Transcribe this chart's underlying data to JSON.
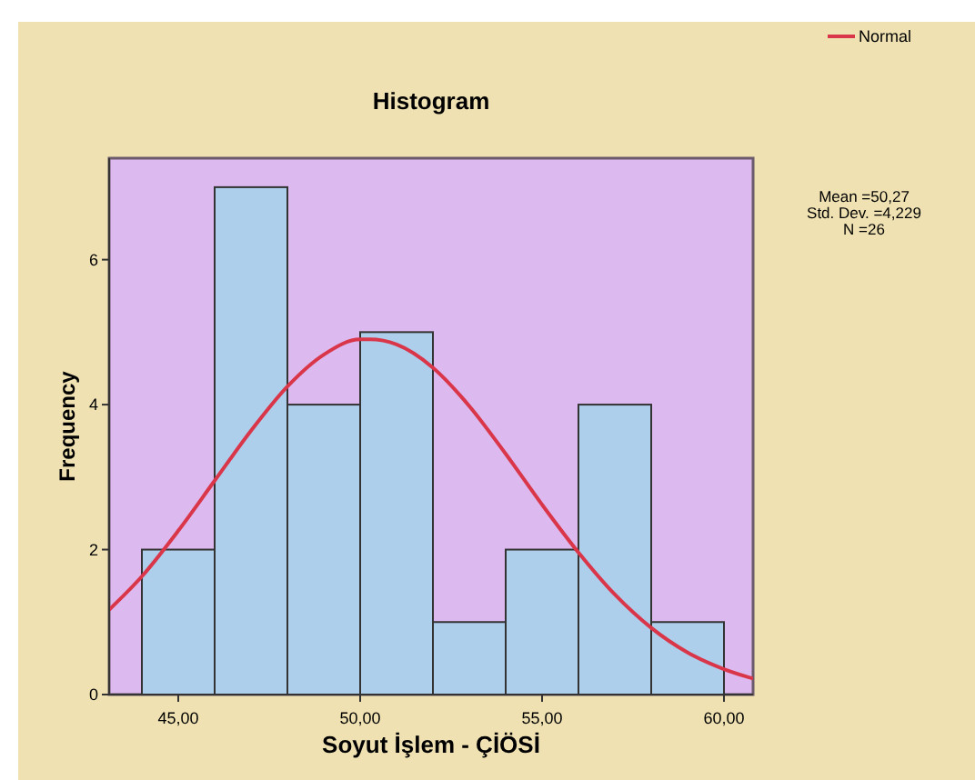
{
  "chart_data": {
    "type": "histogram",
    "title": "Histogram",
    "xlabel": "Soyut İşlem - ÇİÖSİ",
    "ylabel": "Frequency",
    "bins": [
      44,
      46,
      48,
      50,
      52,
      54,
      56,
      58,
      60
    ],
    "series": [
      {
        "color": "#aecfec",
        "values": [
          2,
          7,
          4,
          5,
          1,
          2,
          4,
          1
        ]
      },
      {
        "type": "line",
        "name": "Normal",
        "color": "#d9364a",
        "x": [
          43.1,
          44,
          45,
          46,
          47,
          48,
          49,
          50,
          50.27,
          51,
          52,
          53,
          54,
          55,
          56,
          57,
          58,
          59,
          60,
          60.8
        ],
        "values": [
          1.17,
          1.63,
          2.26,
          2.95,
          3.64,
          4.25,
          4.69,
          4.9,
          4.9,
          4.83,
          4.51,
          3.98,
          3.32,
          2.62,
          1.96,
          1.38,
          0.92,
          0.58,
          0.35,
          0.22
        ]
      }
    ],
    "xlim": [
      43.1,
      60.8
    ],
    "ylim": [
      0,
      7.4
    ],
    "xticks": [
      {
        "value": 45,
        "label": "45,00"
      },
      {
        "value": 50,
        "label": "50,00"
      },
      {
        "value": 55,
        "label": "55,00"
      },
      {
        "value": 60,
        "label": "60,00"
      }
    ],
    "yticks": [
      0,
      2,
      4,
      6
    ],
    "grid": false,
    "legend": "top right",
    "annotations": [
      "Mean =50,27",
      "Std. Dev. =4,229",
      "N =26"
    ]
  }
}
